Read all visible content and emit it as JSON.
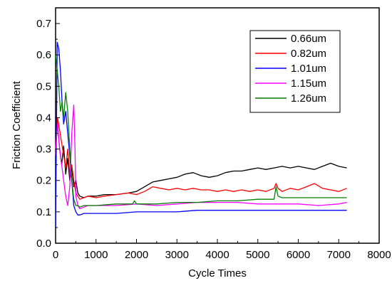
{
  "chart_data": {
    "type": "line",
    "title": "",
    "xlabel": "Cycle Times",
    "ylabel": "Friction Coefficient",
    "xlim": [
      0,
      8000
    ],
    "ylim": [
      0,
      0.75
    ],
    "xticks": [
      "0",
      "1000",
      "2000",
      "3000",
      "4000",
      "5000",
      "6000",
      "7000",
      "8000"
    ],
    "yticks": [
      "0.0",
      "0.1",
      "0.2",
      "0.3",
      "0.4",
      "0.5",
      "0.6",
      "0.7"
    ],
    "grid": false,
    "legend_position": "top-right",
    "series": [
      {
        "name": "0.66um",
        "color": "#000000",
        "x": [
          0,
          50,
          100,
          150,
          200,
          250,
          300,
          350,
          400,
          450,
          500,
          550,
          600,
          700,
          800,
          1000,
          1200,
          1500,
          1800,
          2000,
          2200,
          2400,
          2600,
          2800,
          3000,
          3200,
          3400,
          3600,
          3800,
          4000,
          4200,
          4400,
          4600,
          4800,
          5000,
          5200,
          5400,
          5600,
          5800,
          6000,
          6200,
          6400,
          6600,
          6800,
          7000,
          7200
        ],
        "y": [
          0.3,
          0.38,
          0.3,
          0.25,
          0.31,
          0.22,
          0.27,
          0.2,
          0.24,
          0.18,
          0.2,
          0.16,
          0.15,
          0.145,
          0.15,
          0.15,
          0.155,
          0.155,
          0.16,
          0.165,
          0.18,
          0.195,
          0.2,
          0.205,
          0.21,
          0.22,
          0.225,
          0.215,
          0.21,
          0.215,
          0.225,
          0.23,
          0.23,
          0.235,
          0.24,
          0.235,
          0.24,
          0.245,
          0.24,
          0.245,
          0.24,
          0.235,
          0.245,
          0.255,
          0.245,
          0.24
        ]
      },
      {
        "name": "0.82um",
        "color": "#ff0000",
        "x": [
          0,
          50,
          100,
          150,
          200,
          250,
          300,
          350,
          400,
          450,
          500,
          550,
          600,
          700,
          800,
          1000,
          1200,
          1500,
          1800,
          2000,
          2200,
          2400,
          2600,
          2800,
          3000,
          3200,
          3400,
          3600,
          3800,
          4000,
          4200,
          4400,
          4600,
          4800,
          5000,
          5200,
          5400,
          5450,
          5500,
          5600,
          5800,
          6000,
          6200,
          6400,
          6600,
          6800,
          7000,
          7200
        ],
        "y": [
          0.28,
          0.4,
          0.36,
          0.32,
          0.28,
          0.24,
          0.3,
          0.22,
          0.25,
          0.2,
          0.16,
          0.15,
          0.14,
          0.145,
          0.15,
          0.145,
          0.15,
          0.155,
          0.16,
          0.155,
          0.165,
          0.18,
          0.175,
          0.17,
          0.175,
          0.17,
          0.175,
          0.17,
          0.17,
          0.165,
          0.17,
          0.165,
          0.17,
          0.165,
          0.17,
          0.165,
          0.175,
          0.19,
          0.175,
          0.165,
          0.175,
          0.17,
          0.18,
          0.19,
          0.175,
          0.17,
          0.165,
          0.175
        ]
      },
      {
        "name": "1.01um",
        "color": "#0000ff",
        "x": [
          0,
          40,
          80,
          120,
          160,
          200,
          250,
          300,
          350,
          400,
          450,
          500,
          550,
          600,
          700,
          800,
          1000,
          1500,
          2000,
          2500,
          3000,
          3500,
          4000,
          4500,
          5000,
          5500,
          6000,
          6500,
          7000,
          7200
        ],
        "y": [
          0.05,
          0.64,
          0.62,
          0.55,
          0.45,
          0.38,
          0.42,
          0.35,
          0.28,
          0.2,
          0.12,
          0.1,
          0.09,
          0.09,
          0.095,
          0.095,
          0.095,
          0.095,
          0.1,
          0.1,
          0.1,
          0.105,
          0.105,
          0.105,
          0.105,
          0.105,
          0.105,
          0.105,
          0.105,
          0.105
        ]
      },
      {
        "name": "1.15um",
        "color": "#ff00ff",
        "x": [
          0,
          50,
          100,
          150,
          200,
          250,
          300,
          350,
          400,
          450,
          480,
          500,
          550,
          600,
          700,
          800,
          1000,
          1500,
          2000,
          2500,
          3000,
          3500,
          4000,
          4500,
          5000,
          5500,
          6000,
          6500,
          7000,
          7200
        ],
        "y": [
          0.3,
          0.38,
          0.3,
          0.25,
          0.2,
          0.15,
          0.12,
          0.18,
          0.35,
          0.44,
          0.3,
          0.15,
          0.12,
          0.11,
          0.115,
          0.12,
          0.12,
          0.12,
          0.125,
          0.12,
          0.125,
          0.13,
          0.13,
          0.13,
          0.125,
          0.125,
          0.125,
          0.12,
          0.125,
          0.13
        ]
      },
      {
        "name": "1.26um",
        "color": "#008000",
        "x": [
          0,
          40,
          80,
          120,
          160,
          200,
          250,
          300,
          350,
          400,
          450,
          500,
          550,
          600,
          700,
          800,
          1000,
          1500,
          1900,
          1950,
          2000,
          2500,
          3000,
          3500,
          4000,
          4500,
          5000,
          5400,
          5450,
          5500,
          5600,
          6000,
          6500,
          7000,
          7200
        ],
        "y": [
          0.6,
          0.55,
          0.5,
          0.42,
          0.45,
          0.4,
          0.48,
          0.42,
          0.3,
          0.2,
          0.14,
          0.12,
          0.12,
          0.115,
          0.12,
          0.12,
          0.12,
          0.125,
          0.125,
          0.135,
          0.125,
          0.125,
          0.13,
          0.13,
          0.135,
          0.135,
          0.14,
          0.14,
          0.18,
          0.15,
          0.145,
          0.145,
          0.145,
          0.145,
          0.145
        ]
      }
    ]
  }
}
